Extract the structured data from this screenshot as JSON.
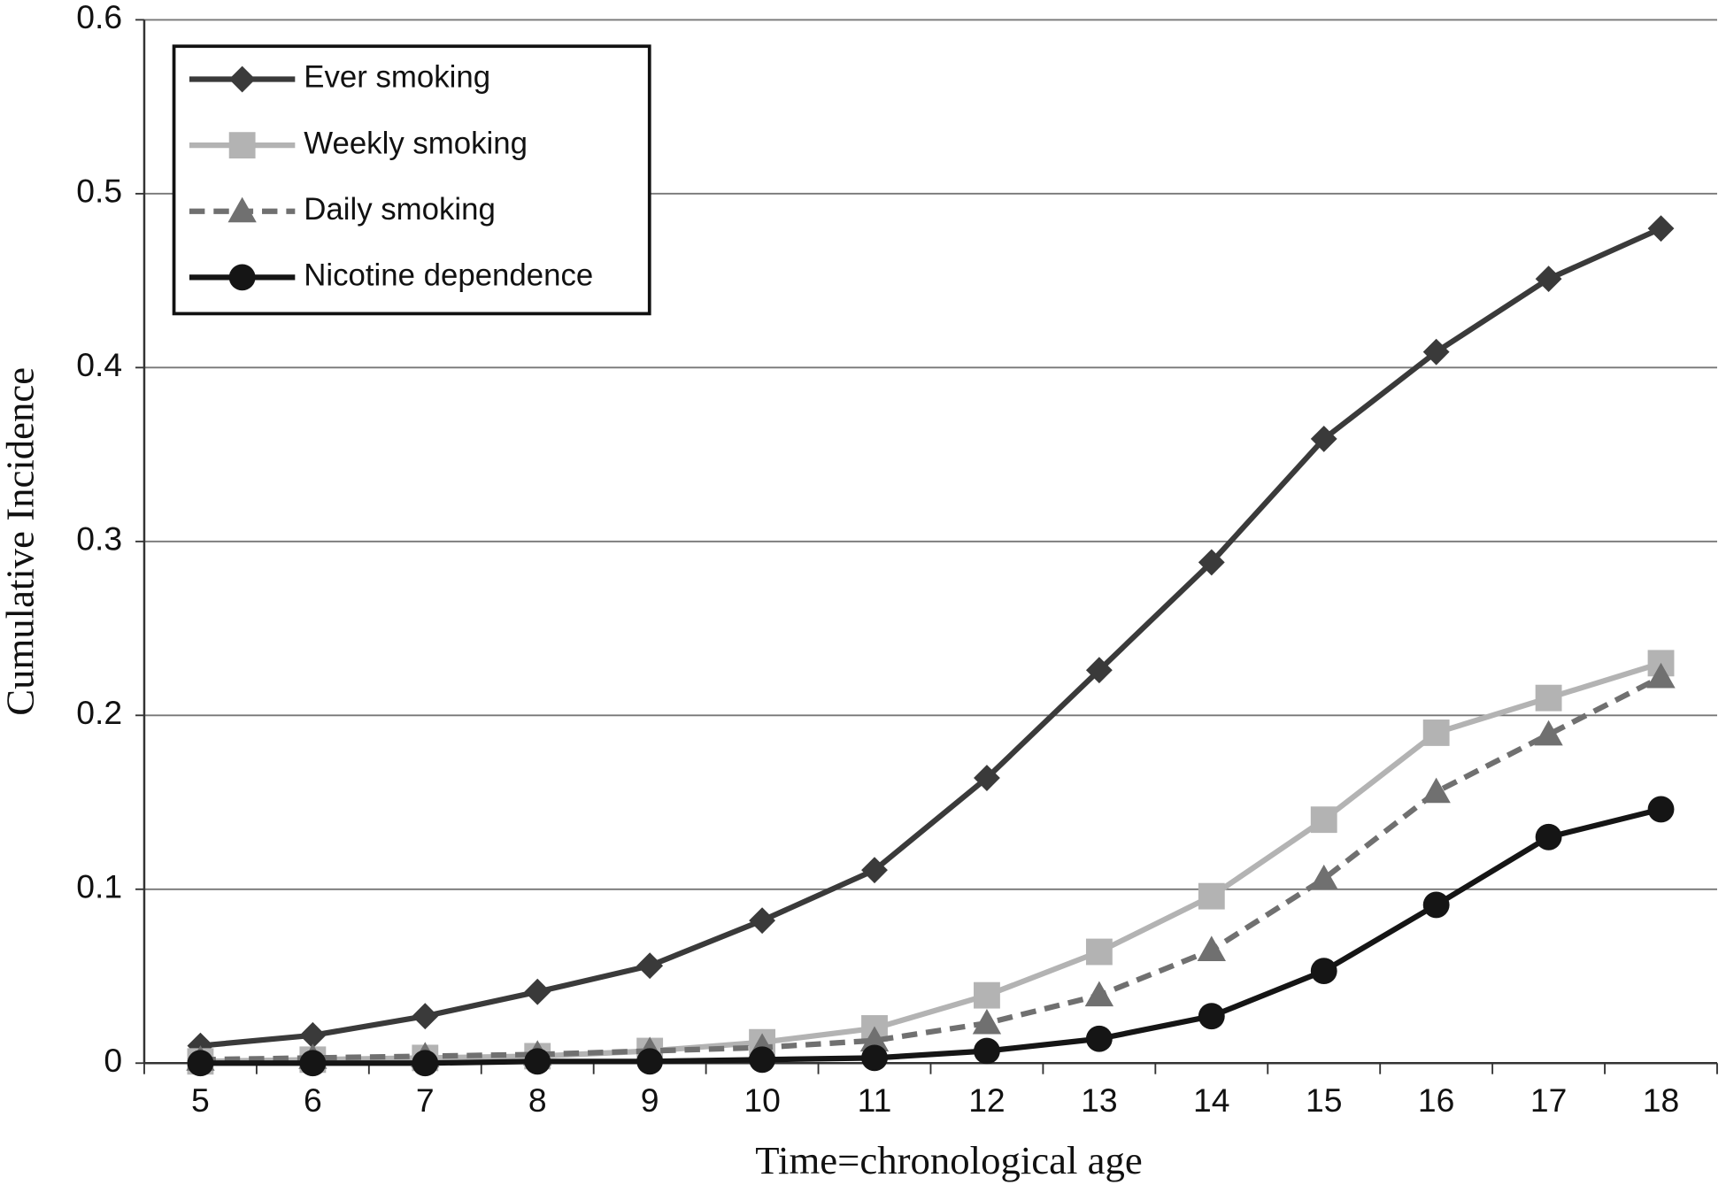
{
  "chart_data": {
    "type": "line",
    "x_label": "Time=chronological age",
    "y_label": "Cumulative Incidence",
    "categories": [
      "5",
      "6",
      "7",
      "8",
      "9",
      "10",
      "11",
      "12",
      "13",
      "14",
      "15",
      "16",
      "17",
      "18"
    ],
    "series": [
      {
        "name": "Ever smoking",
        "color": "#3a3a3a",
        "marker": "diamond",
        "dashed": false,
        "values": [
          0.01,
          0.016,
          0.027,
          0.041,
          0.056,
          0.082,
          0.111,
          0.164,
          0.226,
          0.288,
          0.359,
          0.409,
          0.451,
          0.48
        ]
      },
      {
        "name": "Weekly smoking",
        "color": "#b3b3b3",
        "marker": "square",
        "dashed": false,
        "values": [
          0.001,
          0.002,
          0.003,
          0.004,
          0.007,
          0.012,
          0.02,
          0.039,
          0.064,
          0.096,
          0.14,
          0.19,
          0.21,
          0.23
        ]
      },
      {
        "name": "Daily smoking",
        "color": "#707070",
        "marker": "triangle",
        "dashed": true,
        "values": [
          0.002,
          0.003,
          0.004,
          0.005,
          0.007,
          0.009,
          0.013,
          0.023,
          0.039,
          0.065,
          0.106,
          0.156,
          0.189,
          0.222
        ]
      },
      {
        "name": "Nicotine dependence",
        "color": "#151515",
        "marker": "circle",
        "dashed": false,
        "values": [
          0,
          0,
          0,
          0.001,
          0.001,
          0.002,
          0.003,
          0.007,
          0.014,
          0.027,
          0.053,
          0.091,
          0.13,
          0.146
        ]
      }
    ],
    "ylim": [
      0,
      0.6
    ],
    "yticks": [
      0,
      0.1,
      0.2,
      0.3,
      0.4,
      0.5,
      0.6
    ],
    "grid": true,
    "legend": "upper left"
  }
}
